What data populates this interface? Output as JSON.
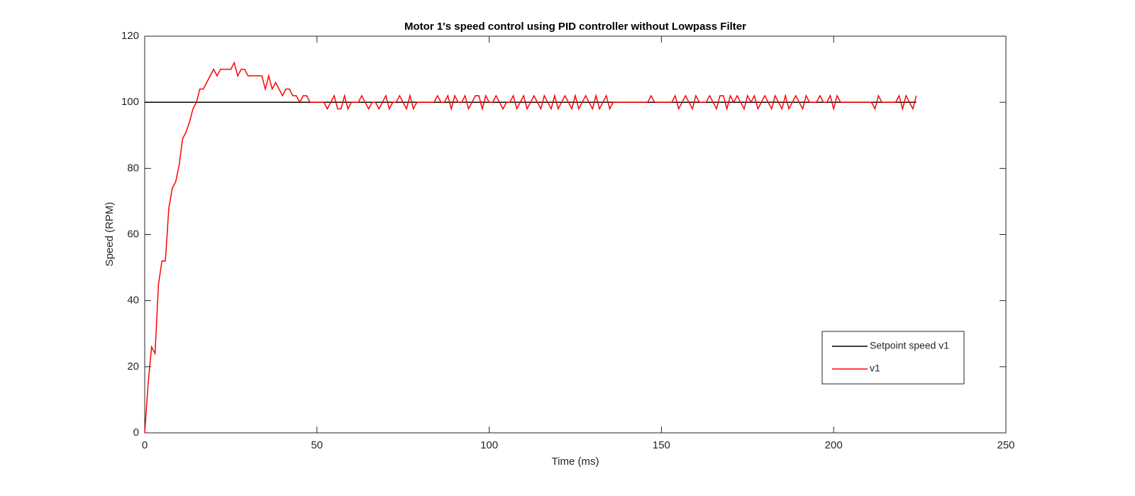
{
  "chart_data": {
    "type": "line",
    "title": "Motor 1's speed control using PID controller without Lowpass Filter",
    "xlabel": "Time (ms)",
    "ylabel": "Speed (RPM)",
    "xlim": [
      0,
      250
    ],
    "xticks": [
      0,
      50,
      100,
      150,
      200,
      250
    ],
    "ylim": [
      0,
      120
    ],
    "yticks": [
      0,
      20,
      40,
      60,
      80,
      100,
      120
    ],
    "legend": "lower right",
    "series": [
      {
        "name": "Setpoint speed v1",
        "color": "#000000",
        "x": [
          0,
          224
        ],
        "values": [
          100,
          100
        ]
      },
      {
        "name": "v1",
        "color": "#ff0000",
        "x": [
          0,
          1,
          2,
          3,
          4,
          5,
          6,
          7,
          8,
          9,
          10,
          11,
          12,
          13,
          14,
          15,
          16,
          17,
          18,
          19,
          20,
          21,
          22,
          23,
          24,
          25,
          26,
          27,
          28,
          29,
          30,
          31,
          32,
          33,
          34,
          35,
          36,
          37,
          38,
          39,
          40,
          41,
          42,
          43,
          44,
          45,
          46,
          47,
          48,
          49,
          50,
          51,
          52,
          53,
          54,
          55,
          56,
          57,
          58,
          59,
          60,
          61,
          62,
          63,
          64,
          65,
          66,
          67,
          68,
          69,
          70,
          71,
          72,
          73,
          74,
          75,
          76,
          77,
          78,
          79,
          80,
          81,
          82,
          83,
          84,
          85,
          86,
          87,
          88,
          89,
          90,
          91,
          92,
          93,
          94,
          95,
          96,
          97,
          98,
          99,
          100,
          101,
          102,
          103,
          104,
          105,
          106,
          107,
          108,
          109,
          110,
          111,
          112,
          113,
          114,
          115,
          116,
          117,
          118,
          119,
          120,
          121,
          122,
          123,
          124,
          125,
          126,
          127,
          128,
          129,
          130,
          131,
          132,
          133,
          134,
          135,
          136,
          137,
          138,
          139,
          140,
          141,
          142,
          143,
          144,
          145,
          146,
          147,
          148,
          149,
          150,
          151,
          152,
          153,
          154,
          155,
          156,
          157,
          158,
          159,
          160,
          161,
          162,
          163,
          164,
          165,
          166,
          167,
          168,
          169,
          170,
          171,
          172,
          173,
          174,
          175,
          176,
          177,
          178,
          179,
          180,
          181,
          182,
          183,
          184,
          185,
          186,
          187,
          188,
          189,
          190,
          191,
          192,
          193,
          194,
          195,
          196,
          197,
          198,
          199,
          200,
          201,
          202,
          203,
          204,
          205,
          206,
          207,
          208,
          209,
          210,
          211,
          212,
          213,
          214,
          215,
          216,
          217,
          218,
          219,
          220,
          221,
          222,
          223,
          224
        ],
        "values": [
          0,
          15,
          26,
          24,
          45,
          52,
          52,
          68,
          74,
          76,
          81,
          89,
          91,
          94,
          98,
          100,
          104,
          104,
          106,
          108,
          110,
          108,
          110,
          110,
          110,
          110,
          112,
          108,
          110,
          110,
          108,
          108,
          108,
          108,
          108,
          104,
          108,
          104,
          106,
          104,
          102,
          104,
          104,
          102,
          102,
          100,
          102,
          102,
          100,
          100,
          100,
          100,
          100,
          98,
          100,
          102,
          98,
          98,
          102,
          98,
          100,
          100,
          100,
          102,
          100,
          98,
          100,
          100,
          98,
          100,
          102,
          98,
          100,
          100,
          102,
          100,
          98,
          102,
          98,
          100,
          100,
          100,
          100,
          100,
          100,
          102,
          100,
          100,
          102,
          98,
          102,
          100,
          100,
          102,
          98,
          100,
          102,
          102,
          98,
          102,
          100,
          100,
          102,
          100,
          98,
          100,
          100,
          102,
          98,
          100,
          102,
          98,
          100,
          102,
          100,
          98,
          102,
          100,
          98,
          102,
          98,
          100,
          102,
          100,
          98,
          102,
          98,
          100,
          102,
          100,
          98,
          102,
          98,
          100,
          102,
          98,
          100,
          100,
          100,
          100,
          100,
          100,
          100,
          100,
          100,
          100,
          100,
          102,
          100,
          100,
          100,
          100,
          100,
          100,
          102,
          98,
          100,
          102,
          100,
          98,
          102,
          100,
          100,
          100,
          102,
          100,
          98,
          102,
          102,
          98,
          102,
          100,
          102,
          100,
          98,
          102,
          100,
          102,
          98,
          100,
          102,
          100,
          98,
          102,
          100,
          98,
          102,
          98,
          100,
          102,
          100,
          98,
          102,
          100,
          100,
          100,
          102,
          100,
          100,
          102,
          98,
          102,
          100,
          100,
          100,
          100,
          100,
          100,
          100,
          100,
          100,
          100,
          98,
          102,
          100,
          100,
          100,
          100,
          100,
          102,
          98,
          102,
          100,
          98,
          102
        ]
      }
    ]
  }
}
